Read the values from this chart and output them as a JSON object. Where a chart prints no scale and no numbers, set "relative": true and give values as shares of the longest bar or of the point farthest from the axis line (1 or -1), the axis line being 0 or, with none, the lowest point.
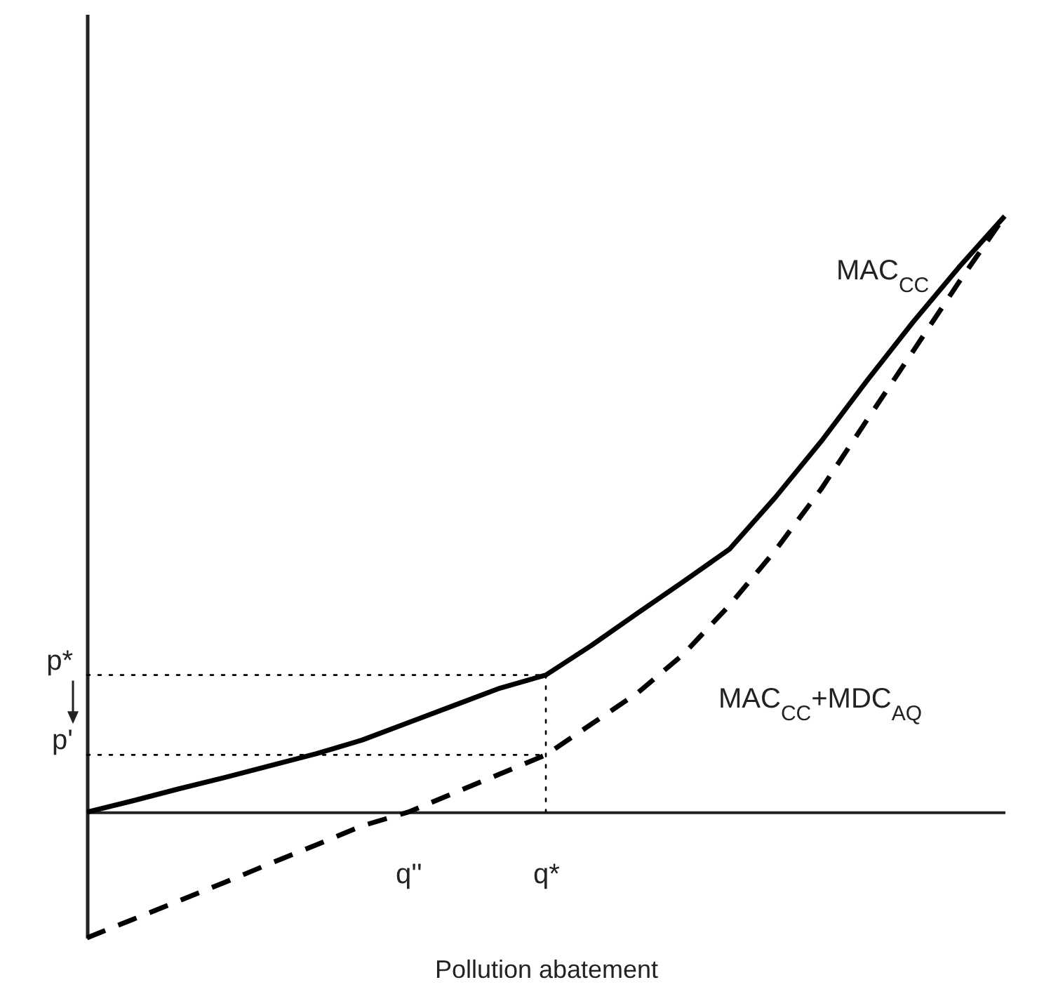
{
  "chart_data": {
    "type": "line",
    "relative": true,
    "xlabel": "Pollution abatement",
    "categories": [
      null,
      null,
      null,
      null,
      null,
      null,
      null,
      "q''",
      null,
      null,
      "q*",
      null,
      null,
      null,
      null,
      null,
      null,
      null,
      null,
      null,
      null
    ],
    "series": [
      {
        "name": "MAC$_{CC}$",
        "color": "#000000",
        "line_style": "solid",
        "values": [
          0,
          0.019,
          0.039,
          0.058,
          0.078,
          0.098,
          0.121,
          0.15,
          0.179,
          0.208,
          0.23,
          0.28,
          0.334,
          0.387,
          0.441,
          0.528,
          0.622,
          0.724,
          0.822,
          0.914,
          1
        ]
      },
      {
        "name": "MAC$_{CC}$+MDC$_{AQ}$",
        "color": "#000000",
        "line_style": "dashed",
        "values": [
          -0.211,
          -0.18,
          -0.149,
          -0.118,
          -0.086,
          -0.055,
          -0.023,
          0,
          0.032,
          0.064,
          0.096,
          0.148,
          0.2,
          0.265,
          0.347,
          0.439,
          0.542,
          0.658,
          0.773,
          0.889,
          1
        ]
      },
      {
        "color": "#000000",
        "line_style": "dotted",
        "values": [
          0.23,
          0.23,
          0.23,
          0.23,
          0.23,
          0.23,
          0.23,
          0.23,
          0.23,
          0.23,
          0.23,
          null,
          null,
          null,
          null,
          null,
          null,
          null,
          null,
          null,
          null
        ]
      },
      {
        "color": "#000000",
        "line_style": "dotted",
        "values": [
          0.096,
          0.096,
          0.096,
          0.096,
          0.096,
          0.096,
          0.096,
          0.096,
          0.096,
          0.096,
          0.096,
          null,
          null,
          null,
          null,
          null,
          null,
          null,
          null,
          null,
          null
        ]
      },
      {
        "color": "#000000",
        "line_style": "dotted",
        "x": [
          "q*",
          "q*"
        ],
        "values": [
          0.23,
          0
        ]
      }
    ],
    "annotations": [
      "p*",
      "p'"
    ]
  }
}
